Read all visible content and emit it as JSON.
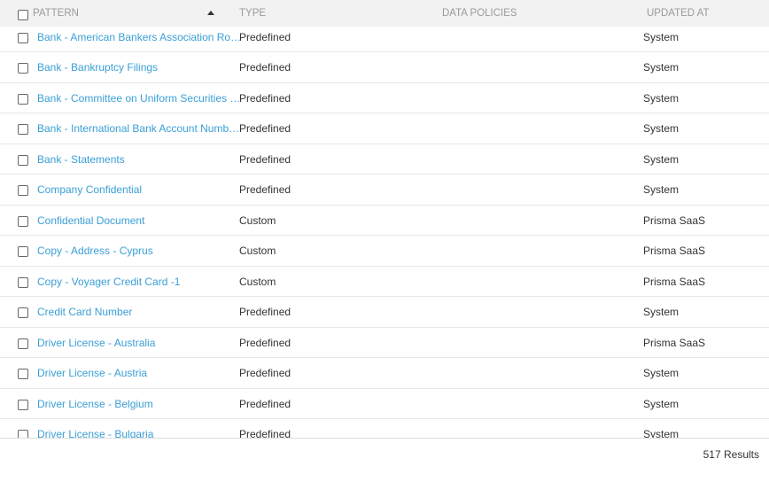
{
  "table": {
    "header": {
      "pattern": "PATTERN",
      "type": "TYPE",
      "data_policies": "DATA POLICIES",
      "updated_at": "UPDATED AT"
    },
    "rows": [
      [
        "Bank - American Bankers Association Ro…",
        "Predefined",
        "System"
      ],
      [
        "Bank - Bankruptcy Filings",
        "Predefined",
        "System"
      ],
      [
        "Bank - Committee on Uniform Securities …",
        "Predefined",
        "System"
      ],
      [
        "Bank - International Bank Account Numb…",
        "Predefined",
        "System"
      ],
      [
        "Bank - Statements",
        "Predefined",
        "System"
      ],
      [
        "Company Confidential",
        "Predefined",
        "System"
      ],
      [
        "Confidential Document",
        "Custom",
        "Prisma SaaS"
      ],
      [
        "Copy - Address - Cyprus",
        "Custom",
        "Prisma SaaS"
      ],
      [
        "Copy - Voyager Credit Card -1",
        "Custom",
        "Prisma SaaS"
      ],
      [
        "Credit Card Number",
        "Predefined",
        "System"
      ],
      [
        "Driver License - Australia",
        "Predefined",
        "Prisma SaaS"
      ],
      [
        "Driver License - Austria",
        "Predefined",
        "System"
      ],
      [
        "Driver License - Belgium",
        "Predefined",
        "System"
      ],
      [
        "Driver License - Bulgaria",
        "Predefined",
        "System"
      ]
    ]
  },
  "footer": {
    "results": "517 Results"
  }
}
